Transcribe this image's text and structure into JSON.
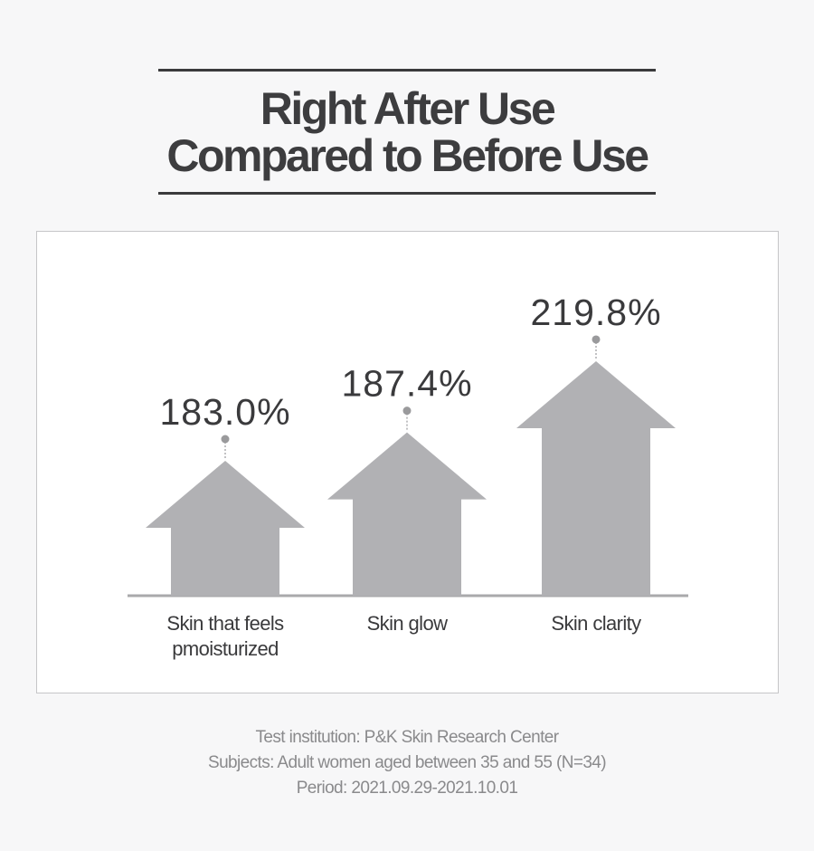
{
  "title": {
    "line1": "Right After Use",
    "line2": "Compared to Before Use"
  },
  "chart_data": {
    "type": "bar",
    "categories": [
      [
        "Skin that feels",
        "pmoisturized"
      ],
      [
        "Skin glow"
      ],
      [
        "Skin clarity"
      ]
    ],
    "values": [
      183.0,
      187.4,
      219.8
    ],
    "value_labels": [
      "183.0%",
      "187.4%",
      "219.8%"
    ],
    "unit": "%",
    "bar_shape": "arrow-up",
    "bar_color": "#b1b1b4",
    "grid": false,
    "legend": "none"
  },
  "footnotes": {
    "institution": "Test institution: P&K Skin Research Center",
    "subjects": "Subjects: Adult women aged between 35 and 55 (N=34)",
    "period": "Period: 2021.09.29-2021.10.01"
  },
  "colors": {
    "background": "#f7f7f8",
    "text": "#3a3a3c",
    "footnote": "#8a8a8c",
    "bar": "#b1b1b4",
    "baseline": "#a9a9ab"
  }
}
